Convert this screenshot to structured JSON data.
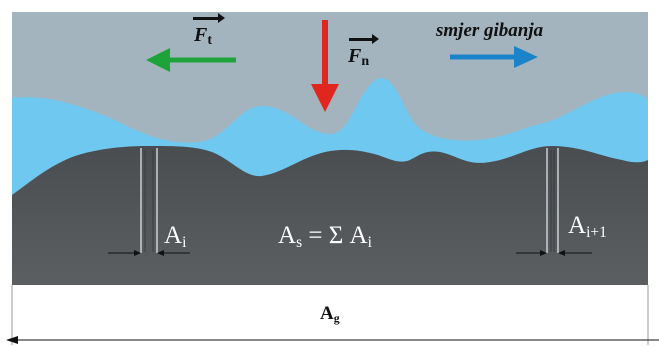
{
  "labels": {
    "ft_main": "F",
    "ft_sub": "t",
    "fn_main": "F",
    "fn_sub": "n",
    "direction": "smjer gibanja",
    "ai_main": "A",
    "ai_sub": "i",
    "as_main": "A",
    "as_sub": "s",
    "as_eq": " = Σ A",
    "as_eq_sub": "i",
    "ai1_main": "A",
    "ai1_sub": "i+1",
    "ag_main": "A",
    "ag_sub": "g"
  },
  "colors": {
    "upper_body": "#a4b4bf",
    "lubricant": "#6ec8ef",
    "lower_body": "#545759",
    "arrow_tangential": "#1ea33b",
    "arrow_normal": "#e0261e",
    "arrow_motion": "#1b83c9"
  }
}
